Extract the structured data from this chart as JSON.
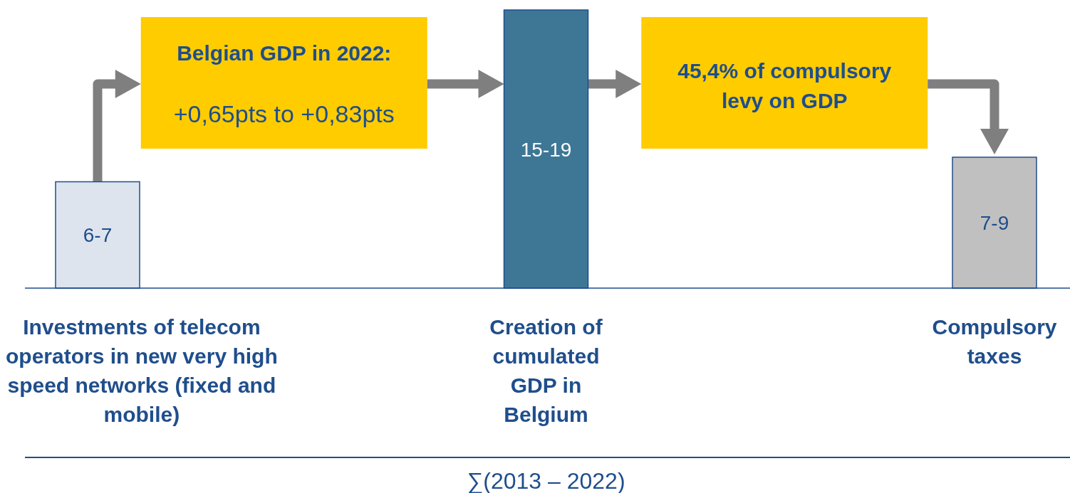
{
  "chart_data": {
    "type": "bar",
    "categories": [
      "Investments of telecom operators in new very high speed networks (fixed and mobile)",
      "Creation of cumulated GDP in Belgium",
      "Compulsory taxes"
    ],
    "values": [
      6.5,
      17,
      8
    ],
    "colors": [
      "#dde4ee",
      "#3e7796",
      "#c0c0c0"
    ],
    "value_labels": [
      "6-7",
      "15-19",
      "7-9"
    ],
    "annotations": [
      "Belgian GDP in 2022:",
      "+0,65pts to +0,83pts",
      "45,4% of compulsory levy on GDP",
      "∑(2013 – 2022)"
    ]
  }
}
